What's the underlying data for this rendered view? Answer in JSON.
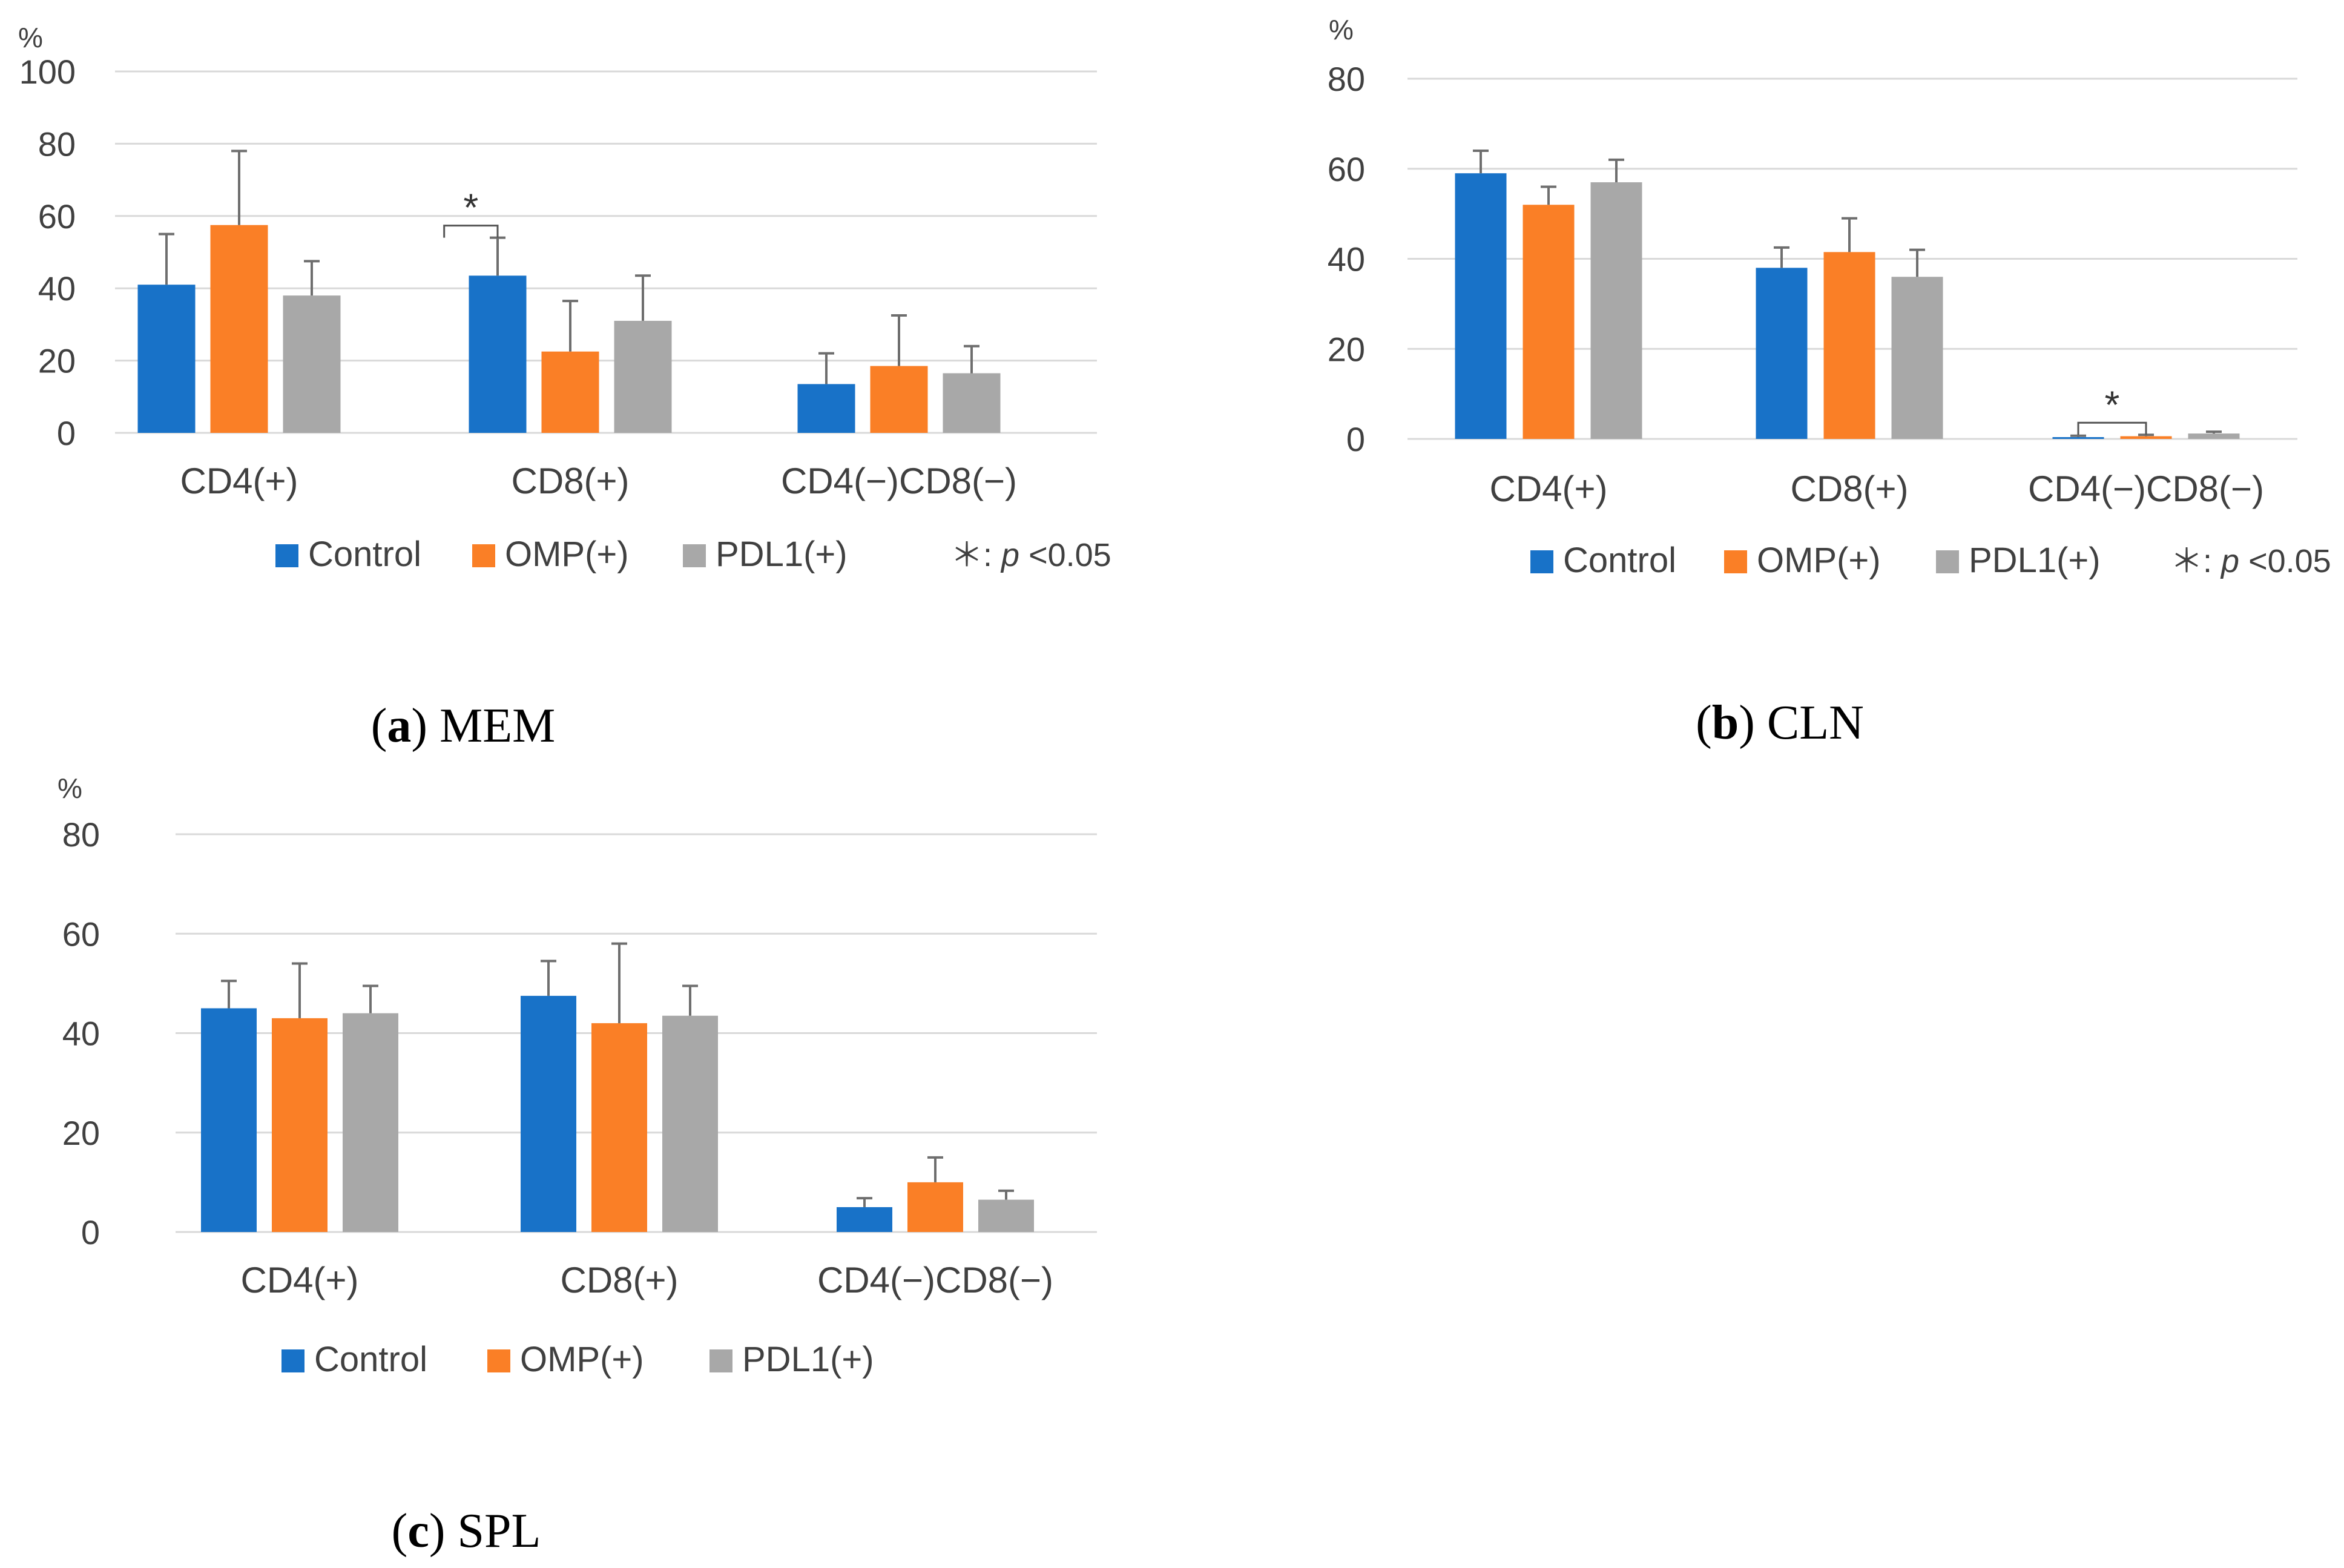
{
  "colors": {
    "Control": "#1872C8",
    "OMP(+)": "#FA7F26",
    "PDL1(+)": "#A8A8A8",
    "grid": "#D9D9D9",
    "axis_text": "#404040",
    "error_bar": "#6E6E6E",
    "bracket": "#555555"
  },
  "chart_data": [
    {
      "type": "bar",
      "panel_label": "a",
      "panel_name": "MEM",
      "ylabel": "%",
      "ylim": [
        0,
        100
      ],
      "yticks": [
        0,
        20,
        40,
        60,
        80,
        100
      ],
      "grid": true,
      "categories": [
        "CD4(+)",
        "CD8(+)",
        "CD4(−)CD8(−)"
      ],
      "series": [
        {
          "name": "Control",
          "values": [
            41,
            43.5,
            13.5
          ],
          "errors": [
            14,
            10.5,
            8.5
          ]
        },
        {
          "name": "OMP(+)",
          "values": [
            57.5,
            22.5,
            18.5
          ],
          "errors": [
            20.5,
            14,
            14
          ]
        },
        {
          "name": "PDL1(+)",
          "values": [
            38,
            31,
            16.5
          ],
          "errors": [
            9.5,
            12.5,
            7.5
          ]
        }
      ],
      "significance": [
        {
          "category_index": 1,
          "series_from": 0,
          "series_to": 0,
          "label": "*",
          "left_offset_bars": 0.8
        }
      ],
      "legend": {
        "position": "bottom",
        "items": [
          "Control",
          "OMP(+)",
          "PDL1(+)"
        ],
        "note_symbol": "＊: ",
        "note_var": "p",
        "note_rest": " <0.05"
      }
    },
    {
      "type": "bar",
      "panel_label": "b",
      "panel_name": "CLN",
      "ylabel": "%",
      "ylim": [
        0,
        80
      ],
      "yticks": [
        0,
        20,
        40,
        60,
        80
      ],
      "grid": true,
      "categories": [
        "CD4(+)",
        "CD8(+)",
        "CD4(−)CD8(−)"
      ],
      "series": [
        {
          "name": "Control",
          "values": [
            59,
            38,
            0.4
          ],
          "errors": [
            5,
            4.5,
            0.3
          ]
        },
        {
          "name": "OMP(+)",
          "values": [
            52,
            41.5,
            0.6
          ],
          "errors": [
            4,
            7.5,
            0.3
          ]
        },
        {
          "name": "PDL1(+)",
          "values": [
            57,
            36,
            1.2
          ],
          "errors": [
            5,
            6,
            0.4
          ]
        }
      ],
      "significance": [
        {
          "category_index": 2,
          "series_from": 0,
          "series_to": 1,
          "label": "*"
        }
      ],
      "legend": {
        "position": "bottom",
        "items": [
          "Control",
          "OMP(+)",
          "PDL1(+)"
        ],
        "note_symbol": "＊: ",
        "note_var": "p",
        "note_rest": " <0.05"
      }
    },
    {
      "type": "bar",
      "panel_label": "c",
      "panel_name": "SPL",
      "ylabel": "%",
      "ylim": [
        0,
        80
      ],
      "yticks": [
        0,
        20,
        40,
        60,
        80
      ],
      "grid": true,
      "categories": [
        "CD4(+)",
        "CD8(+)",
        "CD4(−)CD8(−)"
      ],
      "series": [
        {
          "name": "Control",
          "values": [
            45,
            47.5,
            5
          ],
          "errors": [
            5.5,
            7,
            1.8
          ]
        },
        {
          "name": "OMP(+)",
          "values": [
            43,
            42,
            10
          ],
          "errors": [
            11,
            16,
            5
          ]
        },
        {
          "name": "PDL1(+)",
          "values": [
            44,
            43.5,
            6.5
          ],
          "errors": [
            5.5,
            6,
            1.8
          ]
        }
      ],
      "significance": [],
      "legend": {
        "position": "bottom",
        "items": [
          "Control",
          "OMP(+)",
          "PDL1(+)"
        ]
      }
    }
  ]
}
